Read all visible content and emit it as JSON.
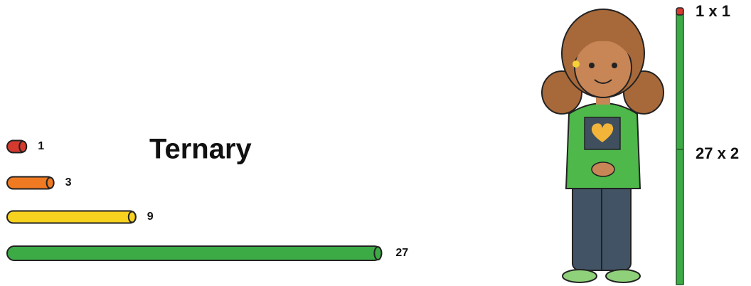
{
  "title": "Ternary",
  "rods": [
    {
      "value": 1,
      "color": "#d63a2f"
    },
    {
      "value": 3,
      "color": "#ef7a22"
    },
    {
      "value": 9,
      "color": "#f7d21e"
    },
    {
      "value": 27,
      "color": "#3cab46"
    }
  ],
  "stick": [
    {
      "label": "1 x 1",
      "color": "#d63a2f"
    },
    {
      "label": "27 x 2",
      "color": "#3cab46"
    }
  ]
}
